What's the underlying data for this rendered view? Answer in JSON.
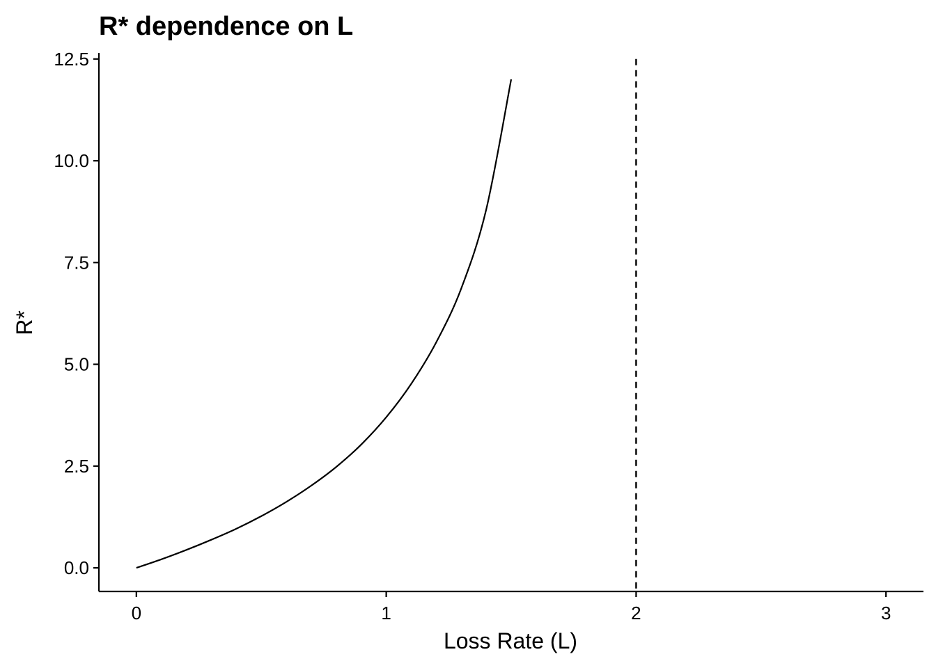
{
  "chart_data": {
    "type": "line",
    "title": "R* dependence on L",
    "xlabel": "Loss Rate (L)",
    "ylabel": "R*",
    "xlim": [
      -0.15,
      3.15
    ],
    "ylim": [
      -0.58,
      12.65
    ],
    "x_ticks": [
      0,
      1,
      2,
      3
    ],
    "x_tick_labels": [
      "0",
      "1",
      "2",
      "3"
    ],
    "y_ticks": [
      0.0,
      2.5,
      5.0,
      7.5,
      10.0,
      12.5
    ],
    "y_tick_labels": [
      "0.0",
      "2.5",
      "5.0",
      "7.5",
      "10.0",
      "12.5"
    ],
    "grid": false,
    "legend": "none",
    "series": [
      {
        "x": [
          0,
          0.1,
          0.2,
          0.3,
          0.4,
          0.5,
          0.6,
          0.7,
          0.8,
          0.9,
          1.0,
          1.1,
          1.2,
          1.3,
          1.4,
          1.5
        ],
        "y": [
          0.0,
          0.21,
          0.44,
          0.69,
          0.96,
          1.27,
          1.62,
          2.02,
          2.48,
          3.03,
          3.7,
          4.52,
          5.54,
          6.86,
          8.8,
          12.0
        ]
      }
    ],
    "reference_lines": [
      {
        "orientation": "vertical",
        "x": 2,
        "style": "dashed"
      }
    ]
  }
}
